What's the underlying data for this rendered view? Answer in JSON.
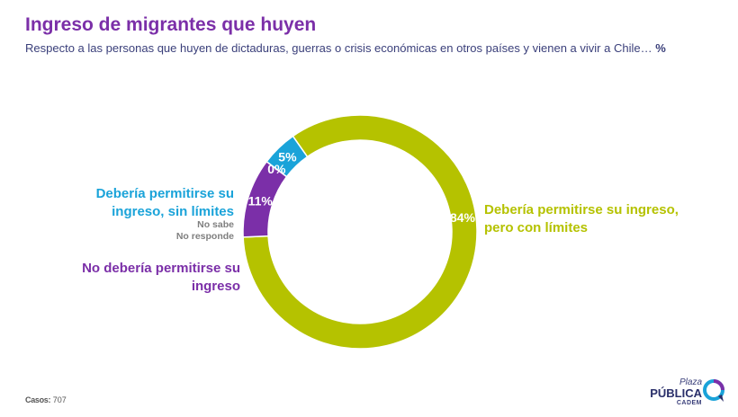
{
  "header": {
    "title": "Ingreso de migrantes que huyen",
    "subtitle": "Respecto a las personas que huyen de dictaduras, guerras o crisis económicas en otros países y vienen a vivir a Chile…",
    "subtitle_unit": "%"
  },
  "chart_data": {
    "type": "pie",
    "variant": "donut",
    "slices": [
      {
        "label": "Debería permitirse su ingreso, pero con límites",
        "value": 84,
        "value_label": "84%",
        "color": "#b5c200"
      },
      {
        "label": "No debería permitirse su ingreso",
        "value": 11,
        "value_label": "11%",
        "color": "#7b2fa8"
      },
      {
        "label": "No sabe No responde",
        "value": 0,
        "value_label": "0%",
        "color": "#8c8c8c"
      },
      {
        "label": "Debería permitirse su ingreso, sin límites",
        "value": 5,
        "value_label": "5%",
        "color": "#1aa3d9"
      }
    ]
  },
  "labels": {
    "right": "Debería permitirse su ingreso, pero con límites",
    "left_top": "Debería permitirse su ingreso, sin límites",
    "left_mid_1": "No sabe",
    "left_mid_2": "No responde",
    "left_bottom": "No debería permitirse su ingreso"
  },
  "footer": {
    "casos_label": "Casos:",
    "casos_value": "707"
  },
  "logo": {
    "line1": "Plaza",
    "line2": "PÚBLICA",
    "line3": "CADEM"
  }
}
